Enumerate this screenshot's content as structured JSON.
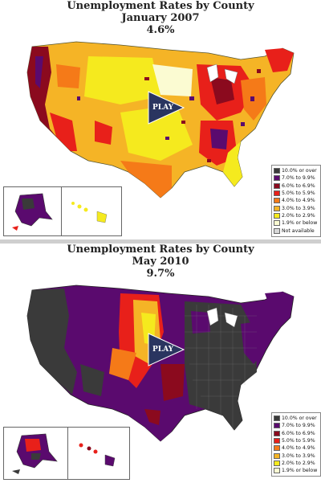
{
  "panels": [
    {
      "title": "Unemployment Rates by County",
      "date": "January 2007",
      "rate": "4.6%",
      "play_label": "PLAY"
    },
    {
      "title": "Unemployment Rates by County",
      "date": "May 2010",
      "rate": "9.7%",
      "play_label": "PLAY"
    }
  ],
  "legend_top": [
    {
      "label": "10.0% or over",
      "color": "#3a3a3a"
    },
    {
      "label": "7.0% to 9.9%",
      "color": "#5a0a6e"
    },
    {
      "label": "6.0% to 6.9%",
      "color": "#8b0a1e"
    },
    {
      "label": "5.0% to 5.9%",
      "color": "#e8201a"
    },
    {
      "label": "4.0% to 4.9%",
      "color": "#f57a18"
    },
    {
      "label": "3.0% to 3.9%",
      "color": "#f5b426"
    },
    {
      "label": "2.0% to 2.9%",
      "color": "#f5ea1e"
    },
    {
      "label": "1.9% or below",
      "color": "#fbfbd2"
    },
    {
      "label": "Not available",
      "color": "#d8d8d8"
    }
  ],
  "legend_bottom": [
    {
      "label": "10.0% or over",
      "color": "#3a3a3a"
    },
    {
      "label": "7.0% to 9.9%",
      "color": "#5a0a6e"
    },
    {
      "label": "6.0% to 6.9%",
      "color": "#8b0a1e"
    },
    {
      "label": "5.0% to 5.9%",
      "color": "#e8201a"
    },
    {
      "label": "4.0% to 4.9%",
      "color": "#f57a18"
    },
    {
      "label": "3.0% to 3.9%",
      "color": "#f5b426"
    },
    {
      "label": "2.0% to 2.9%",
      "color": "#f5ea1e"
    },
    {
      "label": "1.9% or below",
      "color": "#fbfbd2"
    }
  ]
}
